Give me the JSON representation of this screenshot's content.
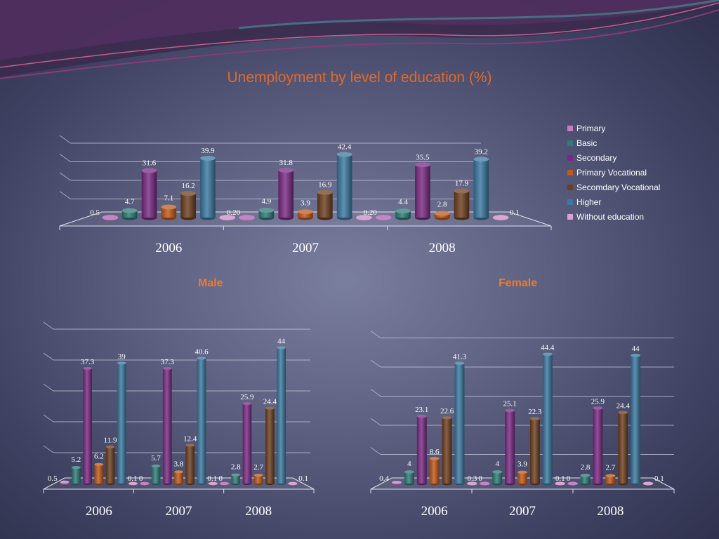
{
  "title": "Unemployment by level of education (%)",
  "male_title": "Male",
  "female_title": "Female",
  "colors": {
    "Primary": "#c57cc4",
    "Basic": "#2e7b78",
    "Secondary": "#7a2a84",
    "Primary Vocational": "#c0591b",
    "Secomdary Vocational": "#6e3f1e",
    "Higher": "#3b79a0",
    "Without education": "#d9a1d4",
    "title": "#e06a2c",
    "subtitle": "#f07a2c"
  },
  "legend": [
    "Primary",
    "Basic",
    "Secondary",
    "Primary Vocational",
    "Secomdary Vocational",
    "Higher",
    "Without education"
  ],
  "chart_data": [
    {
      "type": "bar",
      "name": "total",
      "title": "Unemployment by level of education (%)",
      "categories": [
        "2006",
        "2007",
        "2008"
      ],
      "legend_position": "right",
      "series": [
        {
          "name": "Primary",
          "values": [
            0.5,
            0.2,
            0.2
          ]
        },
        {
          "name": "Basic",
          "values": [
            4.7,
            4.9,
            4.4
          ]
        },
        {
          "name": "Secondary",
          "values": [
            31.6,
            31.8,
            35.5
          ]
        },
        {
          "name": "Primary Vocational",
          "values": [
            7.1,
            3.9,
            2.8
          ]
        },
        {
          "name": "Secomdary Vocational",
          "values": [
            16.2,
            16.9,
            17.9
          ]
        },
        {
          "name": "Higher",
          "values": [
            39.9,
            42.4,
            39.2
          ]
        },
        {
          "name": "Without education",
          "values": [
            0,
            0,
            0.1
          ]
        }
      ]
    },
    {
      "type": "bar",
      "name": "male",
      "title": "Male",
      "categories": [
        "2006",
        "2007",
        "2008"
      ],
      "series": [
        {
          "name": "Primary",
          "values": [
            0.5,
            0.1,
            0.1
          ]
        },
        {
          "name": "Basic",
          "values": [
            5.2,
            5.7,
            2.8
          ]
        },
        {
          "name": "Secondary",
          "values": [
            37.3,
            37.3,
            25.9
          ]
        },
        {
          "name": "Primary Vocational",
          "values": [
            6.2,
            3.8,
            2.7
          ]
        },
        {
          "name": "Secomdary Vocational",
          "values": [
            11.9,
            12.4,
            24.4
          ]
        },
        {
          "name": "Higher",
          "values": [
            39,
            40.6,
            44
          ]
        },
        {
          "name": "Without education",
          "values": [
            0,
            0,
            0.1
          ]
        }
      ]
    },
    {
      "type": "bar",
      "name": "female",
      "title": "Female",
      "categories": [
        "2006",
        "2007",
        "2008"
      ],
      "series": [
        {
          "name": "Primary",
          "values": [
            0.4,
            0.3,
            0.1
          ]
        },
        {
          "name": "Basic",
          "values": [
            4,
            4,
            2.8
          ]
        },
        {
          "name": "Secondary",
          "values": [
            23.1,
            25.1,
            25.9
          ]
        },
        {
          "name": "Primary Vocational",
          "values": [
            8.6,
            3.9,
            2.7
          ]
        },
        {
          "name": "Secomdary Vocational",
          "values": [
            22.6,
            22.3,
            24.4
          ]
        },
        {
          "name": "Higher",
          "values": [
            41.3,
            44.4,
            44
          ]
        },
        {
          "name": "Without education",
          "values": [
            0,
            0,
            0.1
          ]
        }
      ]
    }
  ]
}
